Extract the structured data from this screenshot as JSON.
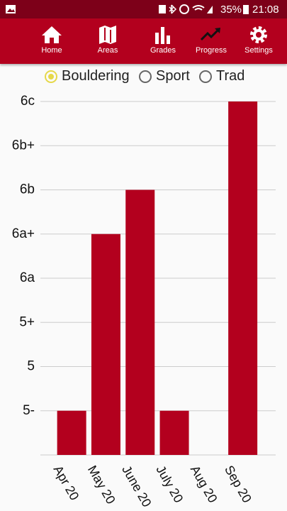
{
  "status_bar": {
    "battery": "35%",
    "time": "21:08"
  },
  "nav": [
    "Home",
    "Areas",
    "Grades",
    "Progress",
    "Settings"
  ],
  "disciplines": [
    "Bouldering",
    "Sport",
    "Trad"
  ],
  "chart_data": {
    "type": "bar",
    "categories": [
      "Apr 20",
      "May 20",
      "June 20",
      "July 20",
      "Aug 20",
      "Sep 20"
    ],
    "values": [
      1,
      5,
      6,
      1,
      null,
      8
    ],
    "color": "#b3001e",
    "ylim": [
      0,
      8
    ],
    "yticks": [
      {
        "value": 1,
        "label": "5-"
      },
      {
        "value": 2,
        "label": "5"
      },
      {
        "value": 3,
        "label": "5+"
      },
      {
        "value": 4,
        "label": "6a"
      },
      {
        "value": 5,
        "label": "6a+"
      },
      {
        "value": 6,
        "label": "6b"
      },
      {
        "value": 7,
        "label": "6b+"
      },
      {
        "value": 8,
        "label": "6c"
      }
    ],
    "grid": true
  }
}
